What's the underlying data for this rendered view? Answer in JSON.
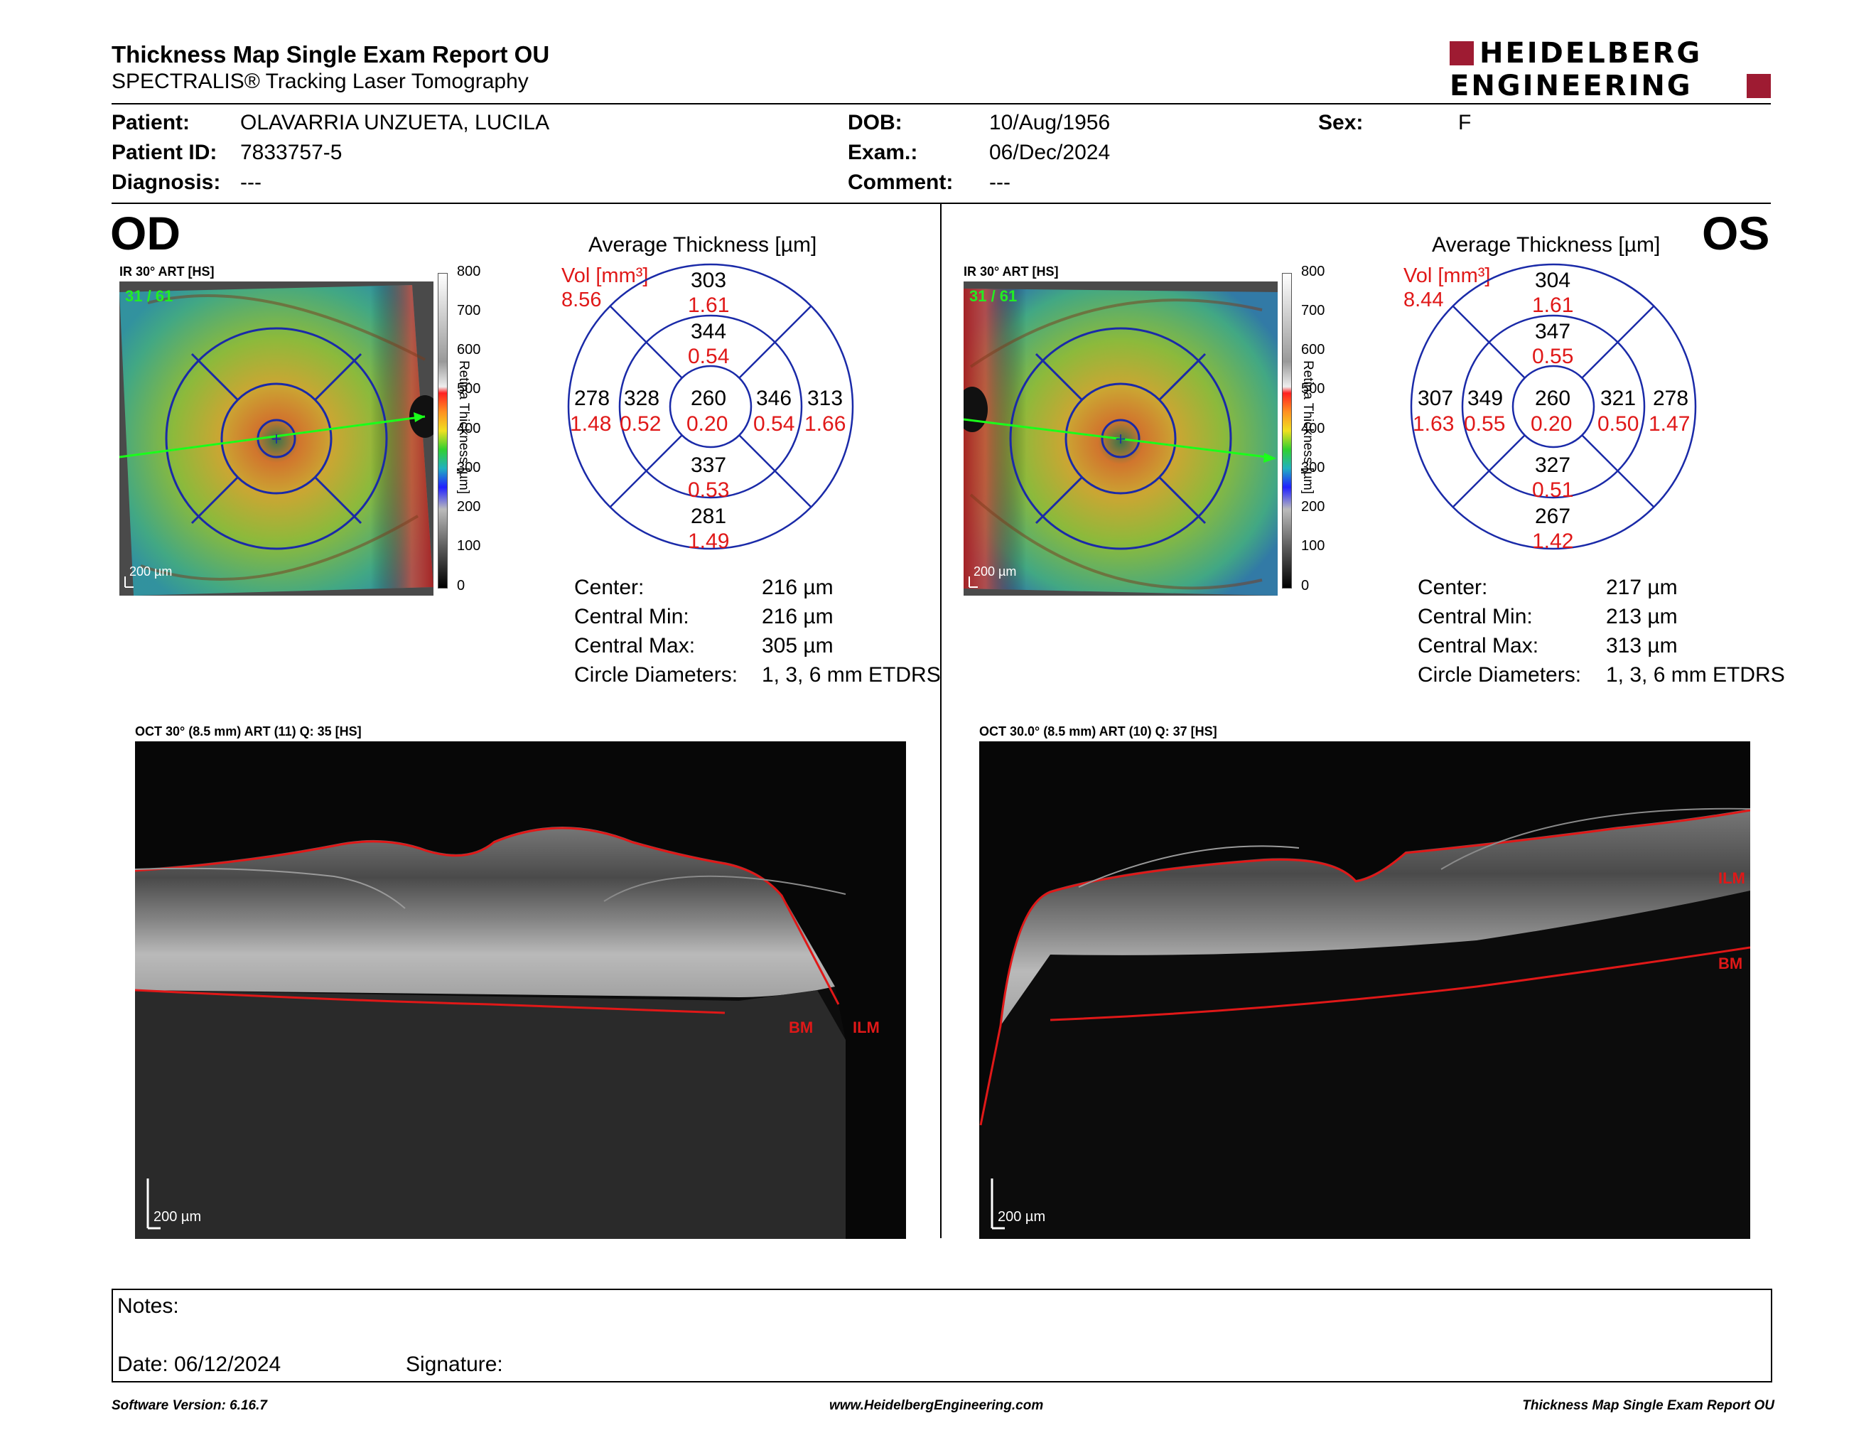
{
  "header": {
    "title": "Thickness Map Single Exam Report OU",
    "subtitle": "SPECTRALIS® Tracking Laser Tomography",
    "logo_line1": "HEIDELBERG",
    "logo_line2": "ENGINEERING",
    "brand_color": "#9e1b32"
  },
  "patient": {
    "patient_label": "Patient:",
    "patient_value": "OLAVARRIA UNZUETA, LUCILA",
    "id_label": "Patient ID:",
    "id_value": "7833757-5",
    "diag_label": "Diagnosis:",
    "diag_value": "---",
    "dob_label": "DOB:",
    "dob_value": "10/Aug/1956",
    "exam_label": "Exam.:",
    "exam_value": "06/Dec/2024",
    "comment_label": "Comment:",
    "comment_value": "---",
    "sex_label": "Sex:",
    "sex_value": "F"
  },
  "scale": {
    "ticks": [
      "800",
      "700",
      "600",
      "500",
      "400",
      "300",
      "200",
      "100",
      "0"
    ],
    "title": "Retina Thickness [µm]"
  },
  "od": {
    "eye": "OD",
    "ir_label": "IR 30° ART [HS]",
    "ir_counter": "31 / 61",
    "ir_scalebar": "200 µm",
    "avg_title": "Average Thickness [µm]",
    "vol_label": "Vol [mm³]",
    "vol_value": "8.56",
    "sectors": {
      "outer_sup": [
        "303",
        "1.61"
      ],
      "inner_sup": [
        "344",
        "0.54"
      ],
      "outer_temp": [
        "278",
        "1.48"
      ],
      "inner_temp": [
        "328",
        "0.52"
      ],
      "center": [
        "260",
        "0.20"
      ],
      "inner_nas": [
        "346",
        "0.54"
      ],
      "outer_nas": [
        "313",
        "1.66"
      ],
      "inner_inf": [
        "337",
        "0.53"
      ],
      "outer_inf": [
        "281",
        "1.49"
      ]
    },
    "stats": [
      {
        "label": "Center:",
        "value": "216 µm"
      },
      {
        "label": "Central Min:",
        "value": "216 µm"
      },
      {
        "label": "Central Max:",
        "value": "305 µm"
      },
      {
        "label": "Circle Diameters:",
        "value": "1, 3, 6 mm ETDRS"
      }
    ],
    "oct_label": "OCT 30° (8.5 mm) ART (11) Q: 35 [HS]",
    "oct_scalebar": "200 µm",
    "oct_bm": "BM",
    "oct_ilm": "ILM"
  },
  "os": {
    "eye": "OS",
    "ir_label": "IR 30° ART [HS]",
    "ir_counter": "31 / 61",
    "ir_scalebar": "200 µm",
    "avg_title": "Average Thickness [µm]",
    "vol_label": "Vol [mm³]",
    "vol_value": "8.44",
    "sectors": {
      "outer_sup": [
        "304",
        "1.61"
      ],
      "inner_sup": [
        "347",
        "0.55"
      ],
      "outer_temp": [
        "307",
        "1.63"
      ],
      "inner_temp": [
        "349",
        "0.55"
      ],
      "center": [
        "260",
        "0.20"
      ],
      "inner_nas": [
        "321",
        "0.50"
      ],
      "outer_nas": [
        "278",
        "1.47"
      ],
      "inner_inf": [
        "327",
        "0.51"
      ],
      "outer_inf": [
        "267",
        "1.42"
      ]
    },
    "stats": [
      {
        "label": "Center:",
        "value": "217 µm"
      },
      {
        "label": "Central Min:",
        "value": "213 µm"
      },
      {
        "label": "Central Max:",
        "value": "313 µm"
      },
      {
        "label": "Circle Diameters:",
        "value": "1, 3, 6 mm ETDRS"
      }
    ],
    "oct_label": "OCT 30.0° (8.5 mm) ART (10) Q: 37 [HS]",
    "oct_scalebar": "200 µm",
    "oct_bm": "BM",
    "oct_ilm": "ILM"
  },
  "notes": {
    "notes_label": "Notes:",
    "date_label": "Date: 06/12/2024",
    "signature_label": "Signature:"
  },
  "footer": {
    "software": "Software Version: 6.16.7",
    "website": "www.HeidelbergEngineering.com",
    "report": "Thickness Map Single Exam Report OU"
  }
}
